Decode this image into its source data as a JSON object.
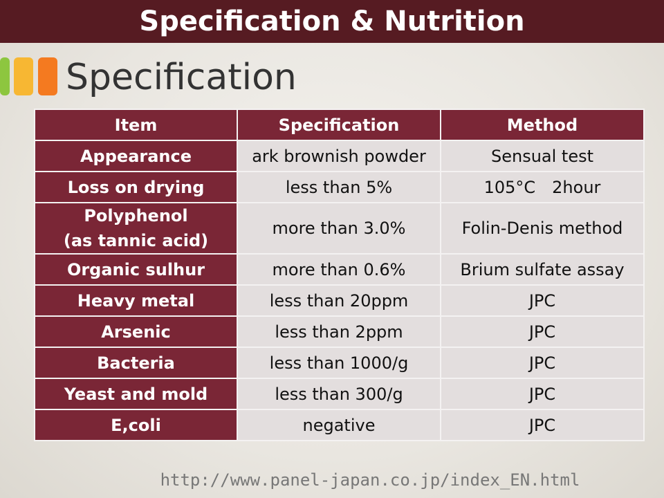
{
  "header": {
    "title": "Specification & Nutrition"
  },
  "section": {
    "title": "Specification"
  },
  "table": {
    "columns": [
      "Item",
      "Specification",
      "Method"
    ],
    "rows": [
      [
        "Appearance",
        "ark brownish powder",
        "Sensual test"
      ],
      [
        "Loss on drying",
        "less than 5%",
        "105°C　2hour"
      ],
      [
        "Polyphenol\n(as tannic acid)",
        "more than 3.0%",
        "Folin-Denis method"
      ],
      [
        "Organic sulhur",
        "more than 0.6%",
        "Brium sulfate assay"
      ],
      [
        "Heavy metal",
        "less than 20ppm",
        "JPC"
      ],
      [
        "Arsenic",
        "less than 2ppm",
        "JPC"
      ],
      [
        "Bacteria",
        "less than 1000/g",
        "JPC"
      ],
      [
        "Yeast and mold",
        "less than 300/g",
        "JPC"
      ],
      [
        "E,coli",
        "negative",
        "JPC"
      ]
    ]
  },
  "footer": {
    "url": "http://www.panel-japan.co.jp/index_EN.html"
  }
}
